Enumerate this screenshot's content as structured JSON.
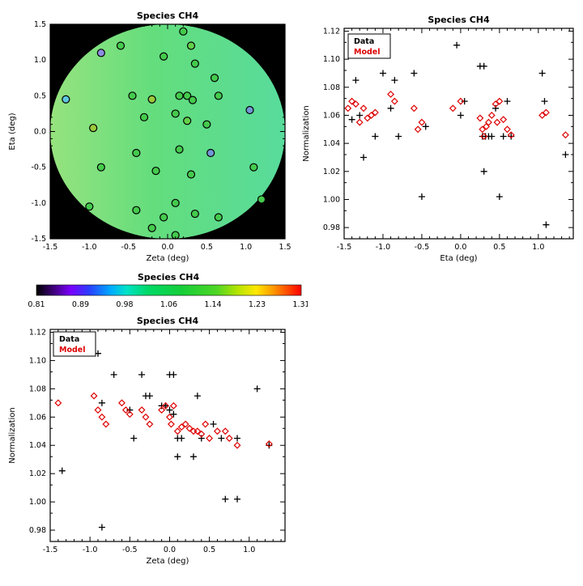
{
  "figure": {
    "background": "#ffffff"
  },
  "chart_data": [
    {
      "id": "map",
      "type": "scatter",
      "title": "Species CH4",
      "xlabel": "Zeta (deg)",
      "ylabel": "Eta (deg)",
      "xlim": [
        -1.5,
        1.5
      ],
      "ylim": [
        -1.5,
        1.5
      ],
      "xticks": [
        -1.5,
        -1.0,
        -0.5,
        0.0,
        0.5,
        1.0,
        1.5
      ],
      "xtick_labels": [
        "-1.5",
        "-1.0",
        "-0.5",
        "0.0",
        "0.5",
        "1.0",
        "1.5"
      ],
      "yticks": [
        -1.5,
        -1.0,
        -0.5,
        0.0,
        0.5,
        1.0,
        1.5
      ],
      "ytick_labels": [
        "-1.5",
        "-1.0",
        "-0.5",
        "0.0",
        "0.5",
        "1.0",
        "1.5"
      ],
      "minor_x": 0.1,
      "minor_y": 0.1,
      "grid": false,
      "plot_bg": "#000000",
      "disk": {
        "cx": 0,
        "cy": 0,
        "rx": 1.5,
        "ry": 1.5,
        "gradient": [
          [
            0,
            "#96e37e"
          ],
          [
            0.45,
            "#63dd7d"
          ],
          [
            1,
            "#58dc9c"
          ]
        ]
      },
      "points": [
        {
          "x": -0.85,
          "y": 1.1,
          "c": "#8d8ce0"
        },
        {
          "x": -0.6,
          "y": 1.2,
          "c": "#44ca4c"
        },
        {
          "x": 0.2,
          "y": 1.4,
          "c": "#44ca4c"
        },
        {
          "x": 0.3,
          "y": 1.2,
          "c": "#63d049"
        },
        {
          "x": -0.05,
          "y": 1.05,
          "c": "#44ca4c"
        },
        {
          "x": 0.35,
          "y": 0.95,
          "c": "#44ca4c"
        },
        {
          "x": -1.3,
          "y": 0.45,
          "c": "#5fc6dc"
        },
        {
          "x": 0.6,
          "y": 0.75,
          "c": "#44ca4c"
        },
        {
          "x": -0.45,
          "y": 0.5,
          "c": "#44ca4c"
        },
        {
          "x": -0.2,
          "y": 0.45,
          "c": "#9cc93c"
        },
        {
          "x": 0.15,
          "y": 0.5,
          "c": "#44ca4c"
        },
        {
          "x": 0.25,
          "y": 0.5,
          "c": "#44ca4c"
        },
        {
          "x": 0.32,
          "y": 0.44,
          "c": "#44ca4c"
        },
        {
          "x": 0.65,
          "y": 0.5,
          "c": "#44ca4c"
        },
        {
          "x": 1.05,
          "y": 0.3,
          "c": "#7396d6"
        },
        {
          "x": -0.95,
          "y": 0.05,
          "c": "#9cc93c"
        },
        {
          "x": -0.3,
          "y": 0.2,
          "c": "#44ca4c"
        },
        {
          "x": 0.1,
          "y": 0.25,
          "c": "#44ca4c"
        },
        {
          "x": 0.25,
          "y": 0.15,
          "c": "#63d049"
        },
        {
          "x": 0.5,
          "y": 0.1,
          "c": "#44ca4c"
        },
        {
          "x": -0.4,
          "y": -0.3,
          "c": "#44ca4c"
        },
        {
          "x": 0.15,
          "y": -0.25,
          "c": "#44ca4c"
        },
        {
          "x": 0.55,
          "y": -0.3,
          "c": "#7396d6"
        },
        {
          "x": -0.85,
          "y": -0.5,
          "c": "#44ca4c"
        },
        {
          "x": -0.15,
          "y": -0.55,
          "c": "#44ca4c"
        },
        {
          "x": 0.3,
          "y": -0.6,
          "c": "#44ca4c"
        },
        {
          "x": 1.1,
          "y": -0.5,
          "c": "#44ca4c"
        },
        {
          "x": -1.0,
          "y": -1.05,
          "c": "#44ca4c"
        },
        {
          "x": -0.4,
          "y": -1.1,
          "c": "#44ca4c"
        },
        {
          "x": 0.1,
          "y": -1.0,
          "c": "#44ca4c"
        },
        {
          "x": -0.05,
          "y": -1.2,
          "c": "#44ca4c"
        },
        {
          "x": 0.35,
          "y": -1.15,
          "c": "#44ca4c"
        },
        {
          "x": 0.65,
          "y": -1.2,
          "c": "#44ca4c"
        },
        {
          "x": 1.2,
          "y": -0.95,
          "c": "#44ca4c"
        },
        {
          "x": -0.2,
          "y": -1.35,
          "c": "#44ca4c"
        },
        {
          "x": 0.1,
          "y": -1.45,
          "c": "#44ca4c"
        }
      ]
    },
    {
      "id": "eta",
      "type": "scatter",
      "title": "Species CH4",
      "xlabel": "Eta (deg)",
      "ylabel": "Normalization",
      "xlim": [
        -1.5,
        1.45
      ],
      "ylim": [
        0.972,
        1.122
      ],
      "xticks": [
        -1.5,
        -1.0,
        -0.5,
        0.0,
        0.5,
        1.0
      ],
      "xtick_labels": [
        "-1.5",
        "-1.0",
        "-0.5",
        "0.0",
        "0.5",
        "1.0"
      ],
      "yticks": [
        0.98,
        1.0,
        1.02,
        1.04,
        1.06,
        1.08,
        1.1,
        1.12
      ],
      "ytick_labels": [
        "0.98",
        "1.00",
        "1.02",
        "1.04",
        "1.06",
        "1.08",
        "1.10",
        "1.12"
      ],
      "minor_x": 0.1,
      "minor_y": 0.01,
      "grid": false,
      "legend": {
        "position": "top-left",
        "items": [
          {
            "label": "Data",
            "color": "#000000"
          },
          {
            "label": "Model",
            "color": "#dd0000"
          }
        ]
      },
      "series": [
        {
          "name": "Data",
          "marker": "plus",
          "color": "#000000",
          "points": [
            [
              -1.4,
              1.057
            ],
            [
              -1.35,
              1.085
            ],
            [
              -1.3,
              1.06
            ],
            [
              -1.25,
              1.03
            ],
            [
              -1.1,
              1.045
            ],
            [
              -1.0,
              1.09
            ],
            [
              -0.9,
              1.065
            ],
            [
              -0.85,
              1.085
            ],
            [
              -0.8,
              1.045
            ],
            [
              -0.6,
              1.09
            ],
            [
              -0.5,
              1.002
            ],
            [
              -0.45,
              1.052
            ],
            [
              -0.05,
              1.11
            ],
            [
              0.0,
              1.06
            ],
            [
              0.05,
              1.07
            ],
            [
              0.25,
              1.095
            ],
            [
              0.3,
              1.095
            ],
            [
              0.28,
              1.045
            ],
            [
              0.32,
              1.045
            ],
            [
              0.36,
              1.045
            ],
            [
              0.4,
              1.045
            ],
            [
              0.3,
              1.02
            ],
            [
              0.45,
              1.065
            ],
            [
              0.5,
              1.002
            ],
            [
              0.55,
              1.045
            ],
            [
              0.6,
              1.07
            ],
            [
              0.65,
              1.045
            ],
            [
              1.05,
              1.09
            ],
            [
              1.08,
              1.07
            ],
            [
              1.1,
              0.982
            ],
            [
              1.35,
              1.032
            ]
          ]
        },
        {
          "name": "Model",
          "marker": "diamond",
          "color": "#dd0000",
          "points": [
            [
              -1.45,
              1.065
            ],
            [
              -1.4,
              1.07
            ],
            [
              -1.35,
              1.068
            ],
            [
              -1.3,
              1.055
            ],
            [
              -1.25,
              1.065
            ],
            [
              -1.2,
              1.058
            ],
            [
              -1.15,
              1.06
            ],
            [
              -1.1,
              1.062
            ],
            [
              -0.9,
              1.075
            ],
            [
              -0.85,
              1.07
            ],
            [
              -0.6,
              1.065
            ],
            [
              -0.55,
              1.05
            ],
            [
              -0.5,
              1.055
            ],
            [
              -0.1,
              1.065
            ],
            [
              0.0,
              1.07
            ],
            [
              0.25,
              1.058
            ],
            [
              0.28,
              1.05
            ],
            [
              0.3,
              1.045
            ],
            [
              0.33,
              1.052
            ],
            [
              0.36,
              1.055
            ],
            [
              0.4,
              1.06
            ],
            [
              0.45,
              1.068
            ],
            [
              0.47,
              1.055
            ],
            [
              0.5,
              1.07
            ],
            [
              0.55,
              1.057
            ],
            [
              0.6,
              1.05
            ],
            [
              0.65,
              1.046
            ],
            [
              1.05,
              1.06
            ],
            [
              1.1,
              1.062
            ],
            [
              1.35,
              1.046
            ]
          ]
        }
      ]
    },
    {
      "id": "colorbar",
      "type": "colorbar",
      "title": "Species CH4",
      "tick_labels": [
        "0.81",
        "0.89",
        "0.98",
        "1.06",
        "1.14",
        "1.23",
        "1.31"
      ],
      "gradient": [
        [
          0.0,
          "#000000"
        ],
        [
          0.06,
          "#3a0070"
        ],
        [
          0.13,
          "#7a00ff"
        ],
        [
          0.2,
          "#2a3fff"
        ],
        [
          0.28,
          "#00aaff"
        ],
        [
          0.34,
          "#00e2c8"
        ],
        [
          0.42,
          "#00d968"
        ],
        [
          0.55,
          "#16ce38"
        ],
        [
          0.68,
          "#4ed626"
        ],
        [
          0.76,
          "#b5e400"
        ],
        [
          0.83,
          "#ffe800"
        ],
        [
          0.9,
          "#ff9100"
        ],
        [
          1.0,
          "#ff0000"
        ]
      ]
    },
    {
      "id": "zeta",
      "type": "scatter",
      "title": "Species CH4",
      "xlabel": "Zeta (deg)",
      "ylabel": "Normalization",
      "xlim": [
        -1.5,
        1.45
      ],
      "ylim": [
        0.972,
        1.122
      ],
      "xticks": [
        -1.5,
        -1.0,
        -0.5,
        0.0,
        0.5,
        1.0
      ],
      "xtick_labels": [
        "-1.5",
        "-1.0",
        "-0.5",
        "0.0",
        "0.5",
        "1.0"
      ],
      "yticks": [
        0.98,
        1.0,
        1.02,
        1.04,
        1.06,
        1.08,
        1.1,
        1.12
      ],
      "ytick_labels": [
        "0.98",
        "1.00",
        "1.02",
        "1.04",
        "1.06",
        "1.08",
        "1.10",
        "1.12"
      ],
      "minor_x": 0.1,
      "minor_y": 0.01,
      "grid": false,
      "legend": {
        "position": "top-left",
        "items": [
          {
            "label": "Data",
            "color": "#000000"
          },
          {
            "label": "Model",
            "color": "#dd0000"
          }
        ]
      },
      "series": [
        {
          "name": "Data",
          "marker": "plus",
          "color": "#000000",
          "points": [
            [
              -1.35,
              1.022
            ],
            [
              -0.9,
              1.105
            ],
            [
              -0.85,
              1.07
            ],
            [
              -0.85,
              0.982
            ],
            [
              -0.7,
              1.09
            ],
            [
              -0.5,
              1.065
            ],
            [
              -0.45,
              1.045
            ],
            [
              -0.35,
              1.09
            ],
            [
              -0.3,
              1.075
            ],
            [
              -0.25,
              1.075
            ],
            [
              -0.1,
              1.068
            ],
            [
              -0.05,
              1.068
            ],
            [
              0.0,
              1.09
            ],
            [
              0.05,
              1.09
            ],
            [
              0.0,
              1.065
            ],
            [
              0.05,
              1.062
            ],
            [
              0.1,
              1.045
            ],
            [
              0.15,
              1.045
            ],
            [
              0.1,
              1.032
            ],
            [
              0.3,
              1.032
            ],
            [
              0.35,
              1.075
            ],
            [
              0.4,
              1.045
            ],
            [
              0.55,
              1.055
            ],
            [
              0.65,
              1.045
            ],
            [
              0.7,
              1.002
            ],
            [
              0.85,
              1.002
            ],
            [
              0.85,
              1.045
            ],
            [
              1.1,
              1.08
            ],
            [
              1.25,
              1.04
            ]
          ]
        },
        {
          "name": "Model",
          "marker": "diamond",
          "color": "#dd0000",
          "points": [
            [
              -1.4,
              1.07
            ],
            [
              -0.95,
              1.075
            ],
            [
              -0.9,
              1.065
            ],
            [
              -0.85,
              1.06
            ],
            [
              -0.8,
              1.055
            ],
            [
              -0.6,
              1.07
            ],
            [
              -0.55,
              1.065
            ],
            [
              -0.5,
              1.062
            ],
            [
              -0.35,
              1.065
            ],
            [
              -0.3,
              1.06
            ],
            [
              -0.25,
              1.055
            ],
            [
              -0.1,
              1.065
            ],
            [
              -0.05,
              1.068
            ],
            [
              0.0,
              1.06
            ],
            [
              0.02,
              1.055
            ],
            [
              0.05,
              1.068
            ],
            [
              0.1,
              1.05
            ],
            [
              0.15,
              1.053
            ],
            [
              0.2,
              1.055
            ],
            [
              0.25,
              1.052
            ],
            [
              0.3,
              1.05
            ],
            [
              0.35,
              1.05
            ],
            [
              0.4,
              1.048
            ],
            [
              0.45,
              1.055
            ],
            [
              0.5,
              1.045
            ],
            [
              0.6,
              1.05
            ],
            [
              0.7,
              1.05
            ],
            [
              0.75,
              1.045
            ],
            [
              0.85,
              1.04
            ],
            [
              1.25,
              1.041
            ]
          ]
        }
      ]
    }
  ]
}
